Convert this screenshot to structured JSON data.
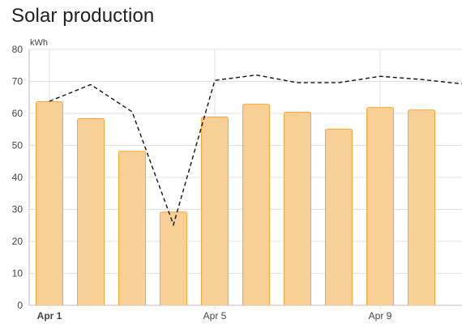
{
  "card": {
    "title": "Solar production"
  },
  "colors": {
    "bar_fill": "#f8cf96",
    "bar_stroke": "#f4a83a",
    "forecast_line": "#111111",
    "grid": "#e0e0e0",
    "axis": "#bdbdbd"
  },
  "chart_data": {
    "type": "bar",
    "title": "Solar production",
    "ylabel": "kWh",
    "xlabel": "",
    "ylim": [
      0,
      80
    ],
    "y_ticks": [
      0,
      10,
      20,
      30,
      40,
      50,
      60,
      70,
      80
    ],
    "grid": true,
    "x_tick_labels": [
      {
        "label": "Apr 1",
        "index": 0,
        "bold": true
      },
      {
        "label": "Apr 5",
        "index": 4,
        "bold": false
      },
      {
        "label": "Apr 9",
        "index": 8,
        "bold": false
      }
    ],
    "series": [
      {
        "kind": "bar",
        "values": [
          63.8,
          58.5,
          48.3,
          29.3,
          59.0,
          63.0,
          60.5,
          55.2,
          62.0,
          61.2
        ]
      },
      {
        "kind": "line",
        "style": "dashed",
        "values": [
          63.8,
          69.0,
          60.5,
          25.2,
          70.3,
          72.0,
          69.6,
          69.6,
          71.6,
          70.6,
          69.2
        ]
      }
    ]
  }
}
